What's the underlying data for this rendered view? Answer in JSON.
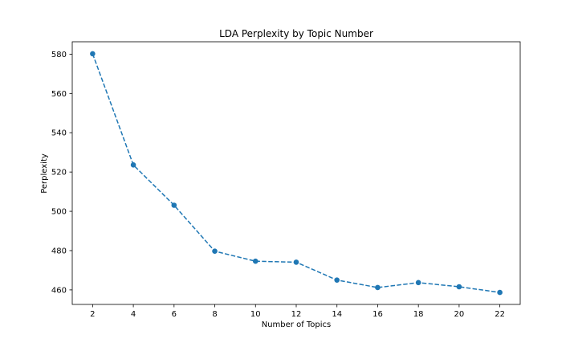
{
  "chart_data": {
    "type": "line",
    "title": "LDA Perplexity by Topic Number",
    "xlabel": "Number of Topics",
    "ylabel": "Perplexity",
    "x": [
      2,
      4,
      6,
      8,
      10,
      12,
      14,
      16,
      18,
      20,
      22
    ],
    "series": [
      {
        "values": [
          580.2,
          523.6,
          503.1,
          479.7,
          474.6,
          474.1,
          465.0,
          461.2,
          463.7,
          461.6,
          458.7
        ],
        "color": "#1f77b4",
        "line_style": "dashed",
        "marker": "circle"
      }
    ],
    "xticks": [
      2,
      4,
      6,
      8,
      10,
      12,
      14,
      16,
      18,
      20,
      22
    ],
    "yticks": [
      460,
      480,
      500,
      520,
      540,
      560,
      580
    ],
    "xlim": [
      1,
      23
    ],
    "ylim": [
      452.6,
      586.3
    ],
    "grid": false,
    "legend": "none"
  }
}
